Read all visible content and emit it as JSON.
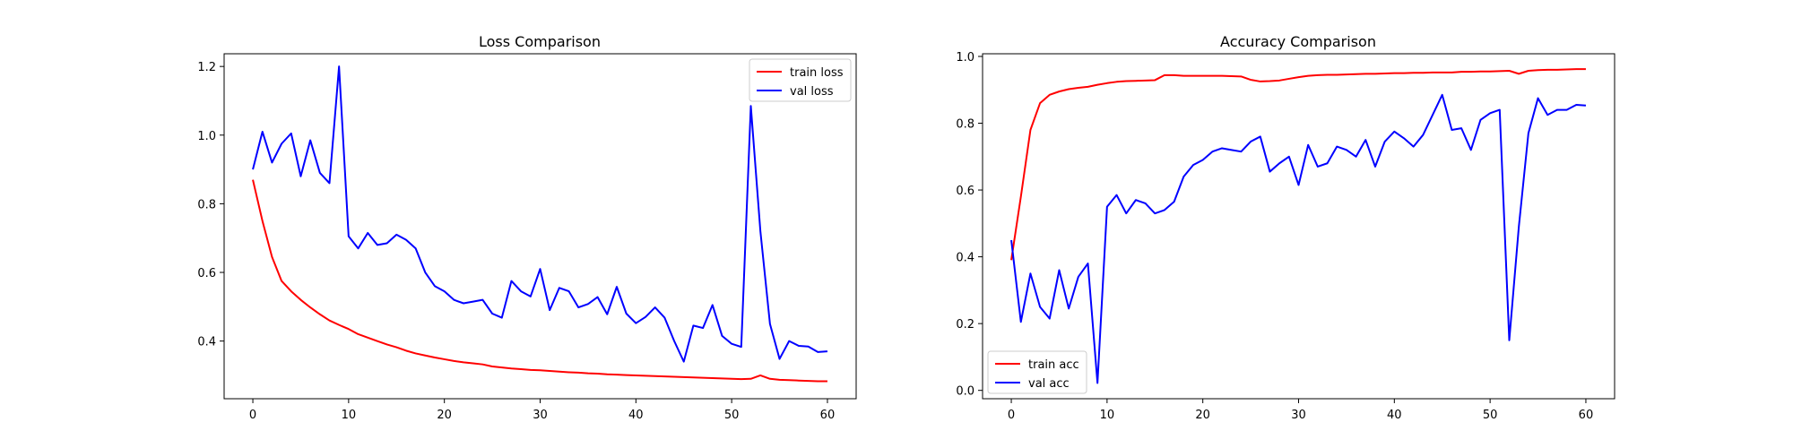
{
  "chart_data": [
    {
      "type": "line",
      "title": "Loss Comparison",
      "xlabel": "",
      "ylabel": "",
      "xlim": [
        -3,
        63
      ],
      "ylim": [
        0.232,
        1.237
      ],
      "xticks": [
        0,
        10,
        20,
        30,
        40,
        50,
        60
      ],
      "yticks": [
        0.4,
        0.6,
        0.8,
        1.0,
        1.2
      ],
      "grid": false,
      "legend": "top-right",
      "x": [
        0,
        1,
        2,
        3,
        4,
        5,
        6,
        7,
        8,
        9,
        10,
        11,
        12,
        13,
        14,
        15,
        16,
        17,
        18,
        19,
        20,
        21,
        22,
        23,
        24,
        25,
        26,
        27,
        28,
        29,
        30,
        31,
        32,
        33,
        34,
        35,
        36,
        37,
        38,
        39,
        40,
        41,
        42,
        43,
        44,
        45,
        46,
        47,
        48,
        49,
        50,
        51,
        52,
        53,
        54,
        55,
        56,
        57,
        58,
        59,
        60
      ],
      "series": [
        {
          "name": "train loss",
          "color": "#ff0000",
          "values": [
            0.87,
            0.75,
            0.645,
            0.575,
            0.545,
            0.52,
            0.498,
            0.478,
            0.46,
            0.447,
            0.435,
            0.42,
            0.41,
            0.4,
            0.39,
            0.382,
            0.372,
            0.364,
            0.358,
            0.352,
            0.347,
            0.342,
            0.338,
            0.335,
            0.332,
            0.326,
            0.323,
            0.32,
            0.318,
            0.316,
            0.315,
            0.313,
            0.311,
            0.309,
            0.308,
            0.306,
            0.305,
            0.303,
            0.302,
            0.301,
            0.3,
            0.299,
            0.298,
            0.297,
            0.296,
            0.295,
            0.294,
            0.293,
            0.292,
            0.291,
            0.29,
            0.289,
            0.29,
            0.3,
            0.29,
            0.287,
            0.286,
            0.285,
            0.284,
            0.283,
            0.283
          ]
        },
        {
          "name": "val loss",
          "color": "#0000ff",
          "values": [
            0.9,
            1.01,
            0.92,
            0.975,
            1.005,
            0.88,
            0.985,
            0.89,
            0.86,
            1.2,
            0.705,
            0.67,
            0.715,
            0.68,
            0.685,
            0.71,
            0.695,
            0.67,
            0.6,
            0.56,
            0.545,
            0.52,
            0.51,
            0.515,
            0.52,
            0.48,
            0.468,
            0.575,
            0.545,
            0.53,
            0.61,
            0.49,
            0.555,
            0.545,
            0.498,
            0.508,
            0.528,
            0.478,
            0.558,
            0.48,
            0.452,
            0.47,
            0.498,
            0.468,
            0.4,
            0.34,
            0.445,
            0.438,
            0.505,
            0.415,
            0.392,
            0.383,
            1.085,
            0.72,
            0.45,
            0.348,
            0.4,
            0.386,
            0.384,
            0.368,
            0.37
          ]
        }
      ]
    },
    {
      "type": "line",
      "title": "Accuracy Comparison",
      "xlabel": "",
      "ylabel": "",
      "xlim": [
        -3,
        63
      ],
      "ylim": [
        -0.025,
        1.008
      ],
      "xticks": [
        0,
        10,
        20,
        30,
        40,
        50,
        60
      ],
      "yticks": [
        0.0,
        0.2,
        0.4,
        0.6,
        0.8,
        1.0
      ],
      "grid": false,
      "legend": "bottom-left",
      "x": [
        0,
        1,
        2,
        3,
        4,
        5,
        6,
        7,
        8,
        9,
        10,
        11,
        12,
        13,
        14,
        15,
        16,
        17,
        18,
        19,
        20,
        21,
        22,
        23,
        24,
        25,
        26,
        27,
        28,
        29,
        30,
        31,
        32,
        33,
        34,
        35,
        36,
        37,
        38,
        39,
        40,
        41,
        42,
        43,
        44,
        45,
        46,
        47,
        48,
        49,
        50,
        51,
        52,
        53,
        54,
        55,
        56,
        57,
        58,
        59,
        60
      ],
      "series": [
        {
          "name": "train acc",
          "color": "#ff0000",
          "values": [
            0.39,
            0.58,
            0.78,
            0.86,
            0.885,
            0.895,
            0.902,
            0.906,
            0.909,
            0.915,
            0.92,
            0.924,
            0.926,
            0.927,
            0.928,
            0.929,
            0.944,
            0.944,
            0.942,
            0.942,
            0.942,
            0.942,
            0.942,
            0.941,
            0.94,
            0.93,
            0.925,
            0.926,
            0.928,
            0.933,
            0.938,
            0.942,
            0.944,
            0.945,
            0.945,
            0.946,
            0.947,
            0.948,
            0.948,
            0.949,
            0.95,
            0.95,
            0.951,
            0.951,
            0.952,
            0.952,
            0.952,
            0.954,
            0.954,
            0.955,
            0.955,
            0.956,
            0.957,
            0.948,
            0.957,
            0.959,
            0.96,
            0.96,
            0.961,
            0.962,
            0.962
          ]
        },
        {
          "name": "val acc",
          "color": "#0000ff",
          "values": [
            0.45,
            0.205,
            0.35,
            0.25,
            0.215,
            0.36,
            0.245,
            0.34,
            0.38,
            0.022,
            0.55,
            0.585,
            0.53,
            0.57,
            0.56,
            0.53,
            0.54,
            0.565,
            0.64,
            0.675,
            0.69,
            0.715,
            0.725,
            0.72,
            0.715,
            0.745,
            0.76,
            0.655,
            0.68,
            0.7,
            0.615,
            0.735,
            0.67,
            0.68,
            0.73,
            0.72,
            0.7,
            0.75,
            0.67,
            0.745,
            0.775,
            0.755,
            0.73,
            0.765,
            0.825,
            0.885,
            0.78,
            0.785,
            0.72,
            0.81,
            0.83,
            0.84,
            0.15,
            0.49,
            0.77,
            0.875,
            0.825,
            0.84,
            0.84,
            0.855,
            0.853
          ]
        }
      ]
    }
  ]
}
